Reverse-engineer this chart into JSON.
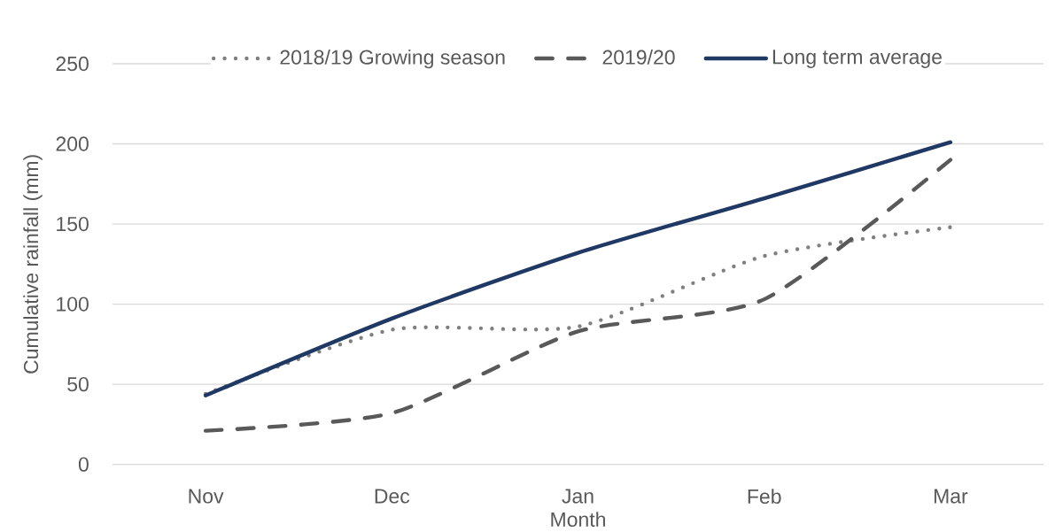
{
  "chart_data": {
    "type": "line",
    "xlabel": "Month",
    "ylabel": "Cumulative rainfall (mm)",
    "categories": [
      "Nov",
      "Dec",
      "Jan",
      "Feb",
      "Mar"
    ],
    "series": [
      {
        "name": "2018/19 Growing season",
        "color": "#7f7f7f",
        "line_style": "dotted",
        "values": [
          44,
          84,
          86,
          130,
          148
        ]
      },
      {
        "name": "2019/20",
        "color": "#595959",
        "line_style": "dashed",
        "values": [
          21,
          32,
          83,
          103,
          190
        ]
      },
      {
        "name": "Long term average",
        "color": "#1f3864",
        "line_style": "solid",
        "values": [
          43,
          91,
          132,
          166,
          201
        ]
      }
    ],
    "ylim": [
      0,
      250
    ],
    "yticks": [
      0,
      50,
      100,
      150,
      200,
      250
    ],
    "grid": "y",
    "legend": "top"
  }
}
